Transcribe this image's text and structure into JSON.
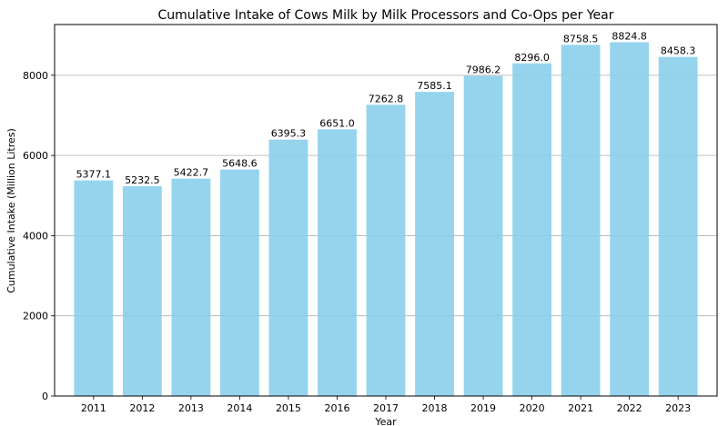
{
  "chart_data": {
    "type": "bar",
    "title": "Cumulative Intake of Cows Milk by Milk Processors and Co-Ops per Year",
    "xlabel": "Year",
    "ylabel": "Cumulative Intake (Million Litres)",
    "categories": [
      "2011",
      "2012",
      "2013",
      "2014",
      "2015",
      "2016",
      "2017",
      "2018",
      "2019",
      "2020",
      "2021",
      "2022",
      "2023"
    ],
    "values": [
      5377.1,
      5232.5,
      5422.7,
      5648.6,
      6395.3,
      6651.0,
      7262.8,
      7585.1,
      7986.2,
      8296.0,
      8758.5,
      8824.8,
      8458.3
    ],
    "value_labels": [
      "5377.1",
      "5232.5",
      "5422.7",
      "5648.6",
      "6395.3",
      "6651.0",
      "7262.8",
      "7585.1",
      "7986.2",
      "8296.0",
      "8758.5",
      "8824.8",
      "8458.3"
    ],
    "ylim": [
      0,
      9265
    ],
    "yticks": [
      0,
      2000,
      4000,
      6000,
      8000
    ],
    "ytick_labels": [
      "0",
      "2000",
      "4000",
      "6000",
      "8000"
    ],
    "grid": "y",
    "bar_color": "#87ceeb"
  }
}
